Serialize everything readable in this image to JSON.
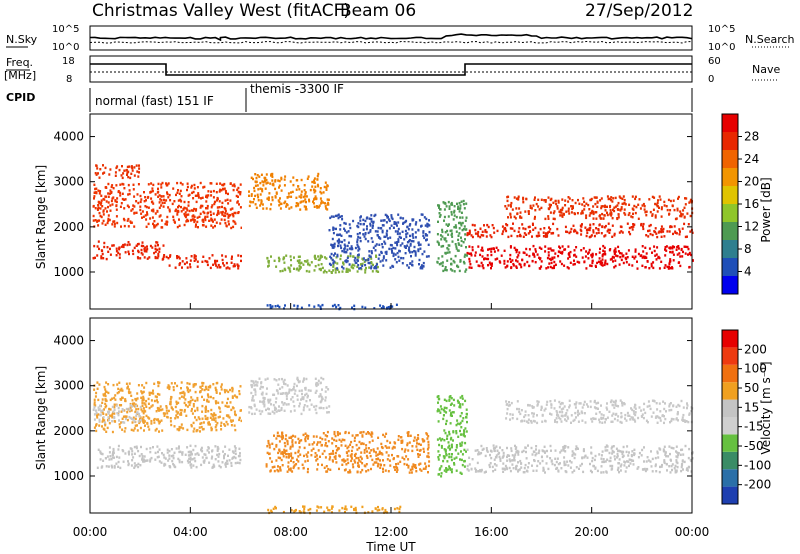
{
  "header": {
    "title": "Christmas Valley West (fitACF)",
    "beam": "Beam 06",
    "date": "27/Sep/2012"
  },
  "top_panels": {
    "nsky_label": "N.Sky",
    "nsearch_label": "N.Search",
    "freq_label": "Freq.",
    "freq_unit": "[MHz]",
    "nave_label": "Nave",
    "cpid_label": "CPID",
    "noise_ticks": [
      "10^5",
      "10^0"
    ],
    "noise_ticks_right": [
      "10^5",
      "10^0"
    ],
    "freq_ticks": [
      "18",
      "8"
    ],
    "nave_ticks": [
      "60",
      "0"
    ],
    "cpid_segments": [
      "normal (fast) 151 IF",
      "themis -3300 IF"
    ]
  },
  "x_axis": {
    "title": "Time UT",
    "ticks": [
      "00:00",
      "04:00",
      "08:00",
      "12:00",
      "16:00",
      "20:00",
      "00:00"
    ]
  },
  "chart_data": [
    {
      "type": "heatmap",
      "panel": "power",
      "ylabel": "Slant Range [km]",
      "ylim": [
        180,
        4500
      ],
      "yticks": [
        "1000",
        "2000",
        "3000",
        "4000"
      ],
      "xlim_hours": [
        0,
        24
      ],
      "colorbar": {
        "label": "Power [dB]",
        "ticks": [
          "28",
          "24",
          "20",
          "16",
          "12",
          "8",
          "4"
        ],
        "colors": [
          "#0000ee",
          "#1f4fb8",
          "#2f7f8f",
          "#4e9a52",
          "#8fc62a",
          "#e0c400",
          "#f29500",
          "#f06400",
          "#e82800",
          "#e60000"
        ]
      },
      "bands": [
        {
          "t": [
            0.1,
            2.9
          ],
          "r": [
            1300,
            1700
          ],
          "color": "#e82000"
        },
        {
          "t": [
            2.9,
            6.0
          ],
          "r": [
            1100,
            1400
          ],
          "color": "#e82000"
        },
        {
          "t": [
            0.1,
            2.0
          ],
          "r": [
            3100,
            3400
          ],
          "color": "#e83000"
        },
        {
          "t": [
            0.1,
            6.0
          ],
          "r": [
            2000,
            3000
          ],
          "color": "#ee3300"
        },
        {
          "t": [
            6.3,
            9.5
          ],
          "r": [
            2400,
            3200
          ],
          "color": "#f08000"
        },
        {
          "t": [
            7.0,
            11.5
          ],
          "r": [
            1000,
            1400
          ],
          "color": "#7fae3a"
        },
        {
          "t": [
            9.5,
            13.5
          ],
          "r": [
            1100,
            2300
          ],
          "color": "#2f4fb0"
        },
        {
          "t": [
            13.8,
            15.0
          ],
          "r": [
            1000,
            2600
          ],
          "color": "#4e9a52"
        },
        {
          "t": [
            15.0,
            24.0
          ],
          "r": [
            1100,
            1600
          ],
          "color": "#e60000"
        },
        {
          "t": [
            15.0,
            24.0
          ],
          "r": [
            1800,
            2100
          ],
          "color": "#e82000"
        },
        {
          "t": [
            16.5,
            24.0
          ],
          "r": [
            2200,
            2700
          ],
          "color": "#e83000"
        },
        {
          "t": [
            7.0,
            12.5
          ],
          "r": [
            200,
            300
          ],
          "color": "#1f4fb8"
        }
      ]
    },
    {
      "type": "heatmap",
      "panel": "velocity",
      "ylabel": "Slant Range [km]",
      "ylim": [
        180,
        4500
      ],
      "yticks": [
        "1000",
        "2000",
        "3000",
        "4000"
      ],
      "xlim_hours": [
        0,
        24
      ],
      "colorbar": {
        "label": "Velocity [m s⁻¹]",
        "ticks": [
          "200",
          "100",
          "50",
          "15",
          "-15",
          "-50",
          "-100",
          "-200"
        ],
        "colors": [
          "#1e3fb0",
          "#2a6fa8",
          "#3a8c66",
          "#66c040",
          "#cfcfcf",
          "#c4c4c4",
          "#f0a020",
          "#f07010",
          "#ee3a10",
          "#e60000"
        ]
      },
      "bands": [
        {
          "t": [
            0.1,
            6.0
          ],
          "r": [
            1200,
            1700
          ],
          "color": "#c4c4c4"
        },
        {
          "t": [
            0.1,
            6.0
          ],
          "r": [
            2000,
            3100
          ],
          "color": "#f0a030"
        },
        {
          "t": [
            0.1,
            2.0
          ],
          "r": [
            2200,
            2600
          ],
          "color": "#c8c8c8"
        },
        {
          "t": [
            6.3,
            9.5
          ],
          "r": [
            2400,
            3200
          ],
          "color": "#c8c8c8"
        },
        {
          "t": [
            7.0,
            13.5
          ],
          "r": [
            1100,
            2000
          ],
          "color": "#f08a20"
        },
        {
          "t": [
            13.8,
            15.0
          ],
          "r": [
            1000,
            2800
          ],
          "color": "#66c040"
        },
        {
          "t": [
            15.0,
            24.0
          ],
          "r": [
            1100,
            1700
          ],
          "color": "#c4c4c4"
        },
        {
          "t": [
            16.5,
            24.0
          ],
          "r": [
            2200,
            2700
          ],
          "color": "#c8c8c8"
        },
        {
          "t": [
            7.0,
            12.5
          ],
          "r": [
            200,
            350
          ],
          "color": "#f0a020"
        }
      ]
    }
  ]
}
